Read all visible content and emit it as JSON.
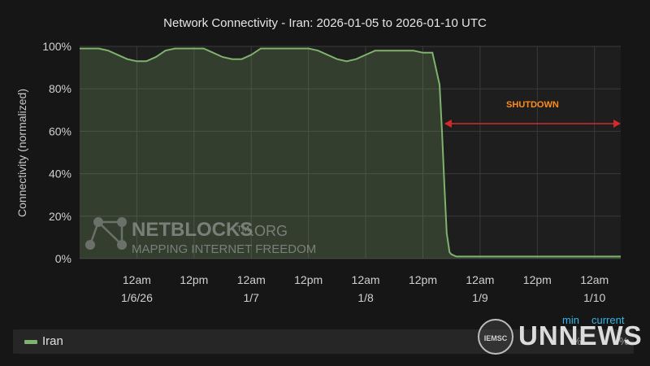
{
  "chart_data": {
    "type": "area",
    "title": "Network Connectivity - Iran: 2026-01-05 to 2026-01-10 UTC",
    "ylabel": "Connectivity (normalized)",
    "xlabel": "",
    "ylim": [
      0,
      100
    ],
    "y_ticks": [
      "0%",
      "20%",
      "40%",
      "60%",
      "80%",
      "100%"
    ],
    "x_ticks": [
      {
        "hours": 24,
        "label": "12am",
        "sublabel": "1/6/26"
      },
      {
        "hours": 36,
        "label": "12pm",
        "sublabel": ""
      },
      {
        "hours": 48,
        "label": "12am",
        "sublabel": "1/7"
      },
      {
        "hours": 60,
        "label": "12pm",
        "sublabel": ""
      },
      {
        "hours": 72,
        "label": "12am",
        "sublabel": "1/8"
      },
      {
        "hours": 84,
        "label": "12pm",
        "sublabel": ""
      },
      {
        "hours": 96,
        "label": "12am",
        "sublabel": "1/9"
      },
      {
        "hours": 108,
        "label": "12pm",
        "sublabel": ""
      },
      {
        "hours": 120,
        "label": "12am",
        "sublabel": "1/10"
      }
    ],
    "grid": true,
    "series": [
      {
        "name": "Iran",
        "color": "#7eb26d",
        "x": [
          12,
          14,
          16,
          18,
          20,
          22,
          24,
          26,
          28,
          30,
          32,
          34,
          36,
          38,
          40,
          42,
          44,
          46,
          48,
          50,
          52,
          54,
          56,
          58,
          60,
          62,
          64,
          66,
          68,
          70,
          72,
          74,
          76,
          78,
          80,
          82,
          84,
          86,
          87.5,
          88,
          88.5,
          89,
          89.6,
          90,
          91,
          93,
          95,
          100,
          105,
          110,
          115,
          120,
          125.5
        ],
        "values": [
          99,
          99,
          99,
          98,
          96,
          94,
          93,
          93,
          95,
          98,
          99,
          99,
          99,
          99,
          97,
          95,
          94,
          94,
          96,
          99,
          99,
          99,
          99,
          99,
          99,
          98,
          96,
          94,
          93,
          94,
          96,
          98,
          98,
          98,
          98,
          98,
          97,
          97,
          82,
          60,
          35,
          12,
          3,
          2,
          1,
          1,
          1,
          1,
          1,
          1,
          1,
          1,
          1
        ]
      }
    ],
    "annotation": {
      "text": "SHUTDOWN",
      "x_start": 88.5,
      "x_end": 125.5,
      "y": 64,
      "color": "#d42a2a",
      "text_color": "#ff8c1a"
    }
  },
  "legend": {
    "label": "Iran",
    "min_label": "min",
    "current_label": "current",
    "min_value": "%",
    "current_value": "%"
  },
  "watermarks": {
    "netblocks_name": "NETBLOCKS",
    "netblocks_suffix": "™.ORG",
    "netblocks_tagline": "MAPPING INTERNET FREEDOM",
    "un_emblem": "IEMSC",
    "un_word": "UNNEWS"
  }
}
